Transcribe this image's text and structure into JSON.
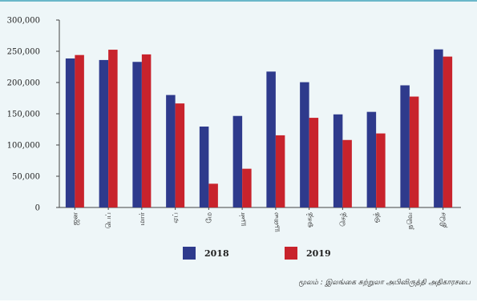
{
  "chart_data": {
    "type": "bar",
    "categories": [
      "ஜன",
      "பெப்",
      "மார்",
      "ஏப்",
      "மே",
      "யூன்",
      "யூலை",
      "ஓகத்",
      "செத்",
      "ஒத்",
      "நவெ",
      "திசெ"
    ],
    "series": [
      {
        "name": "2018",
        "color": "#2e3a8c",
        "values": [
          238500,
          236000,
          233000,
          180000,
          129500,
          146500,
          217500,
          200500,
          149000,
          153000,
          195500,
          253000
        ]
      },
      {
        "name": "2019",
        "color": "#c8232c",
        "values": [
          244000,
          252500,
          245000,
          166500,
          38000,
          62000,
          115500,
          143500,
          108000,
          118500,
          177500,
          241500
        ]
      }
    ],
    "ylim": [
      0,
      300000
    ],
    "yticks": [
      0,
      50000,
      100000,
      150000,
      200000,
      250000,
      300000
    ],
    "ytick_labels": [
      "0",
      "50,000",
      "100,000",
      "150,000",
      "200,000",
      "250,000",
      "300,000"
    ],
    "legend": {
      "position": "bottom"
    },
    "grid": false
  },
  "source_note": "மூலம் : இலங்கை சுற்றுலா அபிவிருத்தி அதிகாரசபை"
}
